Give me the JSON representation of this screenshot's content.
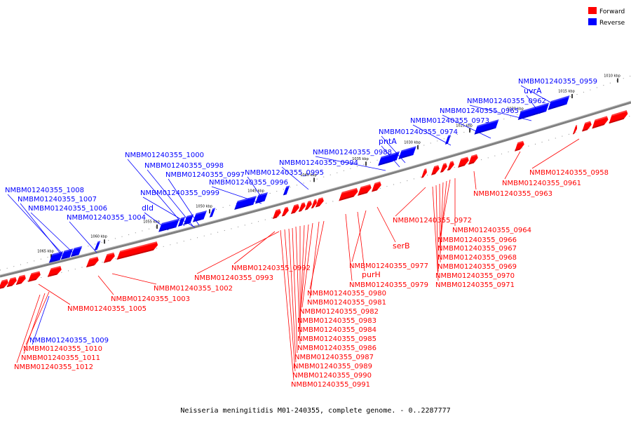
{
  "legend": {
    "items": [
      {
        "label": "Forward",
        "color": "#ff0000"
      },
      {
        "label": "Reverse",
        "color": "#0000ff"
      }
    ]
  },
  "caption": "Neisseria meningitidis M01-240355, complete genome. - 0..2287777",
  "colors": {
    "forward": "#ff0000",
    "reverse": "#0000ff",
    "backbone": "#808080"
  },
  "ticks": [
    "1010 kbp",
    "1015 kbp",
    "1020 kbp",
    "1025 kbp",
    "1030 kbp",
    "1035 kbp",
    "1040 kbp",
    "1045 kbp",
    "1050 kbp",
    "1055 kbp",
    "1060 kbp",
    "1065 kbp"
  ],
  "reverse_labels": [
    "NMBM01240355_0959",
    "uvrA",
    "NMBM01240355_0962",
    "NMBM01240355_0965",
    "NMBM01240355_0973",
    "NMBM01240355_0974",
    "pntA",
    "NMBM01240355_0988",
    "NMBM01240355_0994",
    "NMBM01240355_0995",
    "NMBM01240355_0996",
    "NMBM01240355_1000",
    "NMBM01240355_0998",
    "NMBM01240355_0997",
    "NMBM01240355_0999",
    "dld",
    "NMBM01240355_1004",
    "NMBM01240355_1008",
    "NMBM01240355_1007",
    "NMBM01240355_1006",
    "NMBM01240355_1009"
  ],
  "forward_labels": [
    "NMBM01240355_0958",
    "NMBM01240355_0961",
    "NMBM01240355_0963",
    "NMBM01240355_0964",
    "NMBM01240355_0966",
    "NMBM01240355_0967",
    "NMBM01240355_0968",
    "NMBM01240355_0969",
    "NMBM01240355_0970",
    "NMBM01240355_0971",
    "NMBM01240355_0972",
    "serB",
    "NMBM01240355_0977",
    "purH",
    "NMBM01240355_0979",
    "NMBM01240355_0980",
    "NMBM01240355_0981",
    "NMBM01240355_0982",
    "NMBM01240355_0983",
    "NMBM01240355_0984",
    "NMBM01240355_0985",
    "NMBM01240355_0986",
    "NMBM01240355_0987",
    "NMBM01240355_0989",
    "NMBM01240355_0990",
    "NMBM01240355_0991",
    "NMBM01240355_0992",
    "NMBM01240355_0993",
    "NMBM01240355_1002",
    "NMBM01240355_1003",
    "NMBM01240355_1005",
    "NMBM01240355_1010",
    "NMBM01240355_1011",
    "NMBM01240355_1012"
  ]
}
